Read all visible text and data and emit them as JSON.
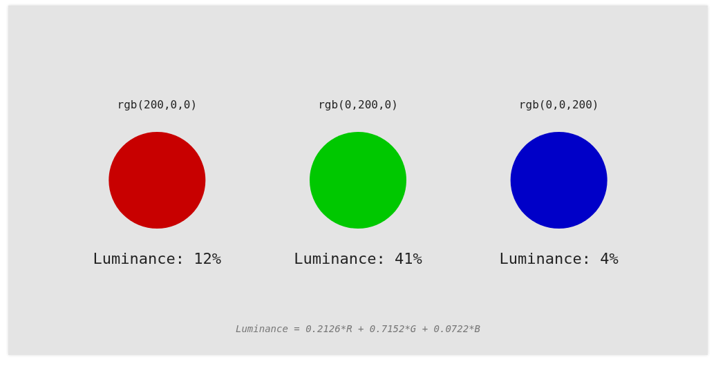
{
  "chart_data": {
    "type": "other",
    "categories": [
      "rgb(200,0,0)",
      "rgb(0,200,0)",
      "rgb(0,0,200)"
    ],
    "values": [
      12,
      41,
      4
    ],
    "value_labels": [
      "Luminance: 12%",
      "Luminance: 41%",
      "Luminance: 4%"
    ],
    "colors": [
      "#c80000",
      "#00c800",
      "#0000c8"
    ],
    "annotations": [
      "Luminance = 0.2126*R + 0.7152*G + 0.0722*B"
    ]
  }
}
